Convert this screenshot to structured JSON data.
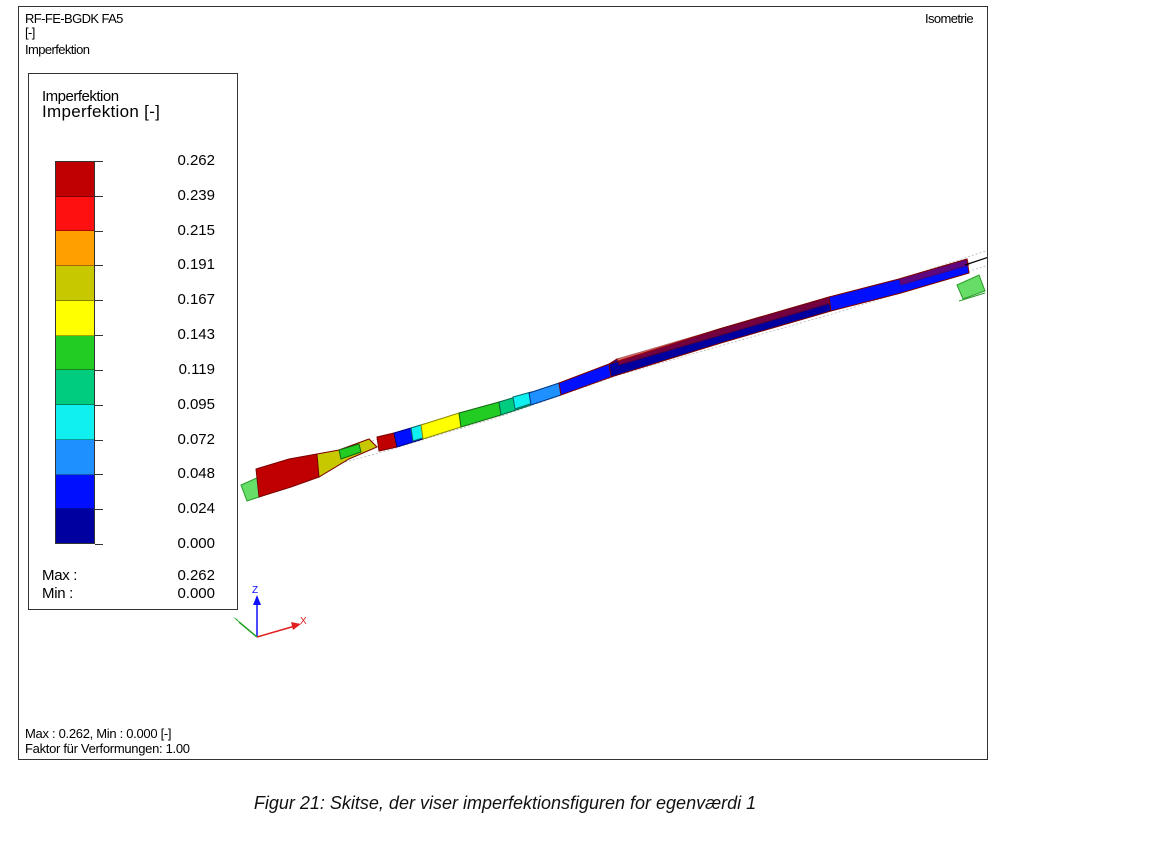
{
  "header": {
    "line1": "RF-FE-BGDK FA5",
    "line2": "[-]",
    "line3": "Imperfektion",
    "view_label": "Isometrie"
  },
  "legend": {
    "title_small": "Imperfektion",
    "title_large": "Imperfektion [-]",
    "colors": [
      "#c00000",
      "#ff1010",
      "#ffa000",
      "#c8c800",
      "#ffff00",
      "#22cc22",
      "#00cc80",
      "#10f0f0",
      "#1e90ff",
      "#0010ff",
      "#0000a0"
    ],
    "values": [
      "0.262",
      "0.239",
      "0.215",
      "0.191",
      "0.167",
      "0.143",
      "0.119",
      "0.095",
      "0.072",
      "0.048",
      "0.024",
      "0.000"
    ],
    "max_label": "Max :",
    "max_value": "0.262",
    "min_label": "Min :",
    "min_value": "0.000"
  },
  "axes": {
    "z": "Z",
    "x": "X"
  },
  "footer": {
    "line1": "Max : 0.262, Min : 0.000 [-]",
    "line2": "Faktor für Verformungen: 1.00"
  },
  "caption": "Figur 21: Skitse, der viser imperfektionsfiguren for egenværdi 1"
}
